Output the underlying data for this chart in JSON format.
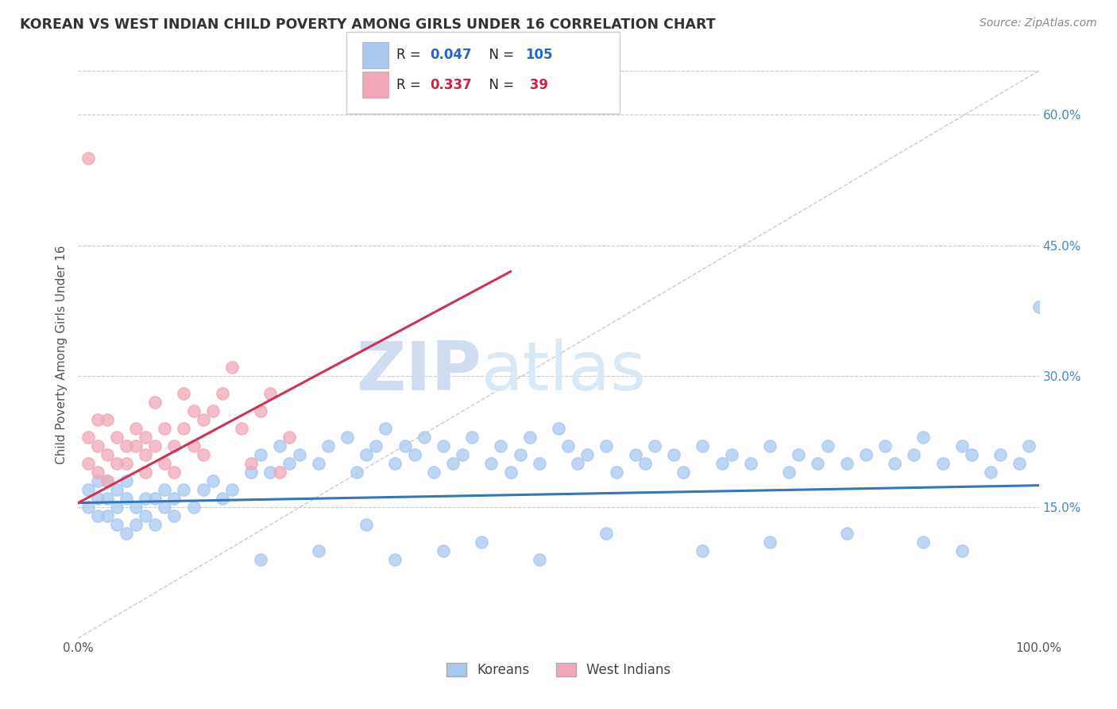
{
  "title": "KOREAN VS WEST INDIAN CHILD POVERTY AMONG GIRLS UNDER 16 CORRELATION CHART",
  "source": "Source: ZipAtlas.com",
  "ylabel": "Child Poverty Among Girls Under 16",
  "xlim": [
    0,
    1
  ],
  "ylim": [
    0,
    0.65
  ],
  "yticks": [
    0.15,
    0.3,
    0.45,
    0.6
  ],
  "yticklabels": [
    "15.0%",
    "30.0%",
    "45.0%",
    "60.0%"
  ],
  "korean_R": 0.047,
  "korean_N": 105,
  "westindian_R": 0.337,
  "westindian_N": 39,
  "korean_color": "#a8c8f0",
  "westindian_color": "#f0a8b8",
  "korean_line_color": "#3377bb",
  "westindian_line_color": "#cc3355",
  "diagonal_color": "#cccccc",
  "watermark_zip": "ZIP",
  "watermark_atlas": "atlas",
  "background_color": "#ffffff",
  "korean_x": [
    0.01,
    0.01,
    0.02,
    0.02,
    0.02,
    0.03,
    0.03,
    0.03,
    0.04,
    0.04,
    0.04,
    0.05,
    0.05,
    0.05,
    0.06,
    0.06,
    0.07,
    0.07,
    0.08,
    0.08,
    0.09,
    0.09,
    0.1,
    0.1,
    0.11,
    0.12,
    0.13,
    0.14,
    0.15,
    0.16,
    0.18,
    0.19,
    0.2,
    0.21,
    0.22,
    0.23,
    0.25,
    0.26,
    0.28,
    0.29,
    0.3,
    0.31,
    0.32,
    0.33,
    0.34,
    0.35,
    0.36,
    0.37,
    0.38,
    0.39,
    0.4,
    0.41,
    0.43,
    0.44,
    0.45,
    0.46,
    0.47,
    0.48,
    0.5,
    0.51,
    0.52,
    0.53,
    0.55,
    0.56,
    0.58,
    0.59,
    0.6,
    0.62,
    0.63,
    0.65,
    0.67,
    0.68,
    0.7,
    0.72,
    0.74,
    0.75,
    0.77,
    0.78,
    0.8,
    0.82,
    0.84,
    0.85,
    0.87,
    0.88,
    0.9,
    0.92,
    0.93,
    0.95,
    0.96,
    0.98,
    0.99,
    1.0,
    0.3,
    0.42,
    0.55,
    0.65,
    0.72,
    0.8,
    0.88,
    0.92,
    0.19,
    0.25,
    0.33,
    0.38,
    0.48
  ],
  "korean_y": [
    0.17,
    0.15,
    0.16,
    0.14,
    0.18,
    0.16,
    0.14,
    0.18,
    0.15,
    0.17,
    0.13,
    0.16,
    0.18,
    0.12,
    0.15,
    0.13,
    0.16,
    0.14,
    0.16,
    0.13,
    0.15,
    0.17,
    0.16,
    0.14,
    0.17,
    0.15,
    0.17,
    0.18,
    0.16,
    0.17,
    0.19,
    0.21,
    0.19,
    0.22,
    0.2,
    0.21,
    0.2,
    0.22,
    0.23,
    0.19,
    0.21,
    0.22,
    0.24,
    0.2,
    0.22,
    0.21,
    0.23,
    0.19,
    0.22,
    0.2,
    0.21,
    0.23,
    0.2,
    0.22,
    0.19,
    0.21,
    0.23,
    0.2,
    0.24,
    0.22,
    0.2,
    0.21,
    0.22,
    0.19,
    0.21,
    0.2,
    0.22,
    0.21,
    0.19,
    0.22,
    0.2,
    0.21,
    0.2,
    0.22,
    0.19,
    0.21,
    0.2,
    0.22,
    0.2,
    0.21,
    0.22,
    0.2,
    0.21,
    0.23,
    0.2,
    0.22,
    0.21,
    0.19,
    0.21,
    0.2,
    0.22,
    0.38,
    0.13,
    0.11,
    0.12,
    0.1,
    0.11,
    0.12,
    0.11,
    0.1,
    0.09,
    0.1,
    0.09,
    0.1,
    0.09
  ],
  "westindian_x": [
    0.01,
    0.01,
    0.02,
    0.02,
    0.02,
    0.03,
    0.03,
    0.03,
    0.04,
    0.04,
    0.05,
    0.05,
    0.06,
    0.06,
    0.07,
    0.07,
    0.07,
    0.08,
    0.08,
    0.09,
    0.09,
    0.1,
    0.1,
    0.11,
    0.11,
    0.12,
    0.12,
    0.13,
    0.13,
    0.14,
    0.15,
    0.16,
    0.17,
    0.18,
    0.19,
    0.2,
    0.21,
    0.22,
    0.01
  ],
  "westindian_y": [
    0.2,
    0.23,
    0.22,
    0.19,
    0.25,
    0.21,
    0.25,
    0.18,
    0.23,
    0.2,
    0.22,
    0.2,
    0.24,
    0.22,
    0.21,
    0.19,
    0.23,
    0.22,
    0.27,
    0.2,
    0.24,
    0.22,
    0.19,
    0.28,
    0.24,
    0.26,
    0.22,
    0.25,
    0.21,
    0.26,
    0.28,
    0.31,
    0.24,
    0.2,
    0.26,
    0.28,
    0.19,
    0.23,
    0.55
  ],
  "korean_line_x0": 0.0,
  "korean_line_x1": 1.0,
  "korean_line_y0": 0.155,
  "korean_line_y1": 0.175,
  "westindian_line_x0": 0.0,
  "westindian_line_x1": 0.45,
  "westindian_line_y0": 0.155,
  "westindian_line_y1": 0.42
}
